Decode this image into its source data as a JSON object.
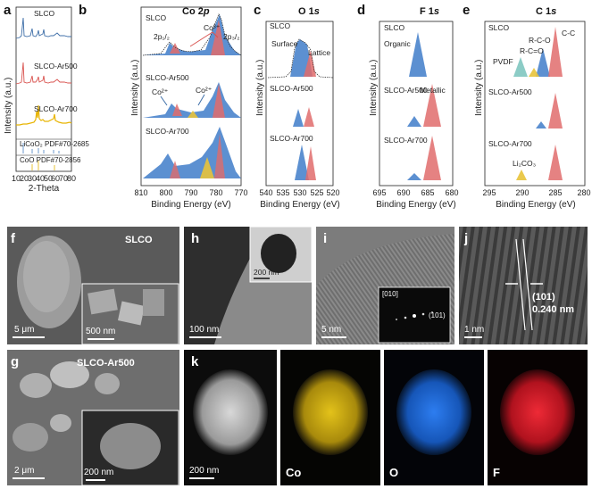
{
  "panels": {
    "a": {
      "label": "a",
      "ylabel": "Intensity (a.u.)",
      "xlabel": "2-Theta",
      "xticks": [
        "10",
        "20",
        "30",
        "40",
        "50",
        "60",
        "70",
        "80"
      ],
      "series": [
        "SLCO",
        "SLCO-Ar500",
        "SLCO-Ar700"
      ],
      "ref1": "LiCoO₂ PDF#70-2685",
      "ref2": "CoO PDF#70-2856"
    },
    "b": {
      "label": "b",
      "title": "Co 2",
      "title_italic": "p",
      "xlabel": "Binding Energy (eV)",
      "ylabel": "Intensity (a.u.)",
      "xticks": [
        "810",
        "800",
        "790",
        "780",
        "770"
      ],
      "series": [
        "SLCO",
        "SLCO-Ar500",
        "SLCO-Ar700"
      ],
      "ann": {
        "p12": "2p₁/₂",
        "co3": "Co³⁺",
        "p32": "2p₃/₂",
        "co2a": "Co²⁺",
        "co2b": "Co²⁺"
      }
    },
    "c": {
      "label": "c",
      "title": "O 1",
      "title_italic": "s",
      "xlabel": "Binding Energy (eV)",
      "ylabel": "Intensity (a.u.)",
      "xticks": [
        "540",
        "535",
        "530",
        "525",
        "520"
      ],
      "series": [
        "SLCO",
        "SLCO-Ar500",
        "SLCO-Ar700"
      ],
      "ann": {
        "surface": "Surface",
        "lattice": "Lattice"
      }
    },
    "d": {
      "label": "d",
      "title": "F 1",
      "title_italic": "s",
      "xlabel": "Binding Energy (eV)",
      "ylabel": "Intensity (a.u.)",
      "xticks": [
        "695",
        "690",
        "685",
        "680"
      ],
      "series": [
        "SLCO",
        "SLCO-Ar500",
        "SLCO-Ar700"
      ],
      "ann": {
        "organic": "Organic",
        "metallic": "Metallic"
      }
    },
    "e": {
      "label": "e",
      "title": "C 1",
      "title_italic": "s",
      "xlabel": "Binding Energy (eV)",
      "ylabel": "Intensity (a.u.)",
      "xticks": [
        "295",
        "290",
        "285",
        "280"
      ],
      "series": [
        "SLCO",
        "SLCO-Ar500",
        "SLCO-Ar700"
      ],
      "ann": {
        "pvdf": "PVDF",
        "rco": "R-C-O",
        "rcoo": "R-C=O",
        "cc": "C-C",
        "li2co3": "Li₂CO₃"
      }
    },
    "f": {
      "label": "f",
      "name": "SLCO",
      "scale": "5 μm",
      "inset_scale": "500 nm"
    },
    "g": {
      "label": "g",
      "name": "SLCO-Ar500",
      "scale": "2 μm",
      "inset_scale": "200 nm"
    },
    "h": {
      "label": "h",
      "scale": "100 nm",
      "inset_scale": "200 nm"
    },
    "i": {
      "label": "i",
      "scale": "5 nm",
      "fft_zone": "[010]",
      "fft_spot": "(101)"
    },
    "j": {
      "label": "j",
      "scale": "1 nm",
      "plane": "(101)",
      "spacing": "0.240 nm"
    },
    "k": {
      "label": "k",
      "scale": "200 nm",
      "maps": [
        "Co",
        "O",
        "F"
      ]
    }
  },
  "colors": {
    "slco": "#3f6fa8",
    "ar500": "#d9534f",
    "ar700": "#e8b400",
    "ref1": "#4a7fc0",
    "ref2": "#e2b400",
    "peak_blue": "#3f7cc9",
    "peak_red": "#e06c6c",
    "peak_yellow": "#e8c33a",
    "map_co": "#d8b400",
    "map_o": "#1f6fd6",
    "map_f": "#d81c2a"
  }
}
